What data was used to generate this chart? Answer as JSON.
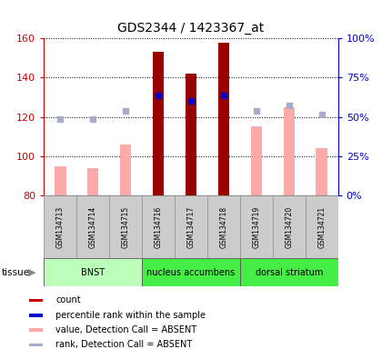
{
  "title": "GDS2344 / 1423367_at",
  "samples": [
    "GSM134713",
    "GSM134714",
    "GSM134715",
    "GSM134716",
    "GSM134717",
    "GSM134718",
    "GSM134719",
    "GSM134720",
    "GSM134721"
  ],
  "ylim_left": [
    80,
    160
  ],
  "ylim_right": [
    0,
    100
  ],
  "yticks_left": [
    80,
    100,
    120,
    140,
    160
  ],
  "yticks_right": [
    0,
    25,
    50,
    75,
    100
  ],
  "ytick_labels_right": [
    "0%",
    "25%",
    "50%",
    "75%",
    "100%"
  ],
  "bar_values": [
    null,
    null,
    null,
    153,
    142,
    158,
    null,
    null,
    null
  ],
  "bar_pink_values": [
    95,
    94,
    106,
    null,
    null,
    null,
    115,
    125,
    104
  ],
  "rank_blue_values": [
    null,
    null,
    null,
    131,
    128,
    131,
    null,
    null,
    null
  ],
  "rank_blue_absent_values": [
    119,
    119,
    123,
    null,
    null,
    null,
    123,
    126,
    121
  ],
  "bar_color": "#990000",
  "bar_pink_color": "#ffaaaa",
  "rank_blue_color": "#0000cc",
  "rank_blue_absent_color": "#aaaacc",
  "tissue_groups": [
    {
      "label": "BNST",
      "start": 0,
      "end": 3,
      "color": "#bbffbb"
    },
    {
      "label": "nucleus accumbens",
      "start": 3,
      "end": 6,
      "color": "#44ee44"
    },
    {
      "label": "dorsal striatum",
      "start": 6,
      "end": 9,
      "color": "#44ee44"
    }
  ],
  "legend_items": [
    {
      "color": "#cc0000",
      "label": "count"
    },
    {
      "color": "#0000cc",
      "label": "percentile rank within the sample"
    },
    {
      "color": "#ffaaaa",
      "label": "value, Detection Call = ABSENT"
    },
    {
      "color": "#aaaacc",
      "label": "rank, Detection Call = ABSENT"
    }
  ],
  "background_color": "#ffffff",
  "axis_color_left": "#cc0000",
  "axis_color_right": "#0000cc",
  "bar_width": 0.35,
  "rank_marker_size": 5,
  "sample_box_color": "#cccccc",
  "sample_box_edge": "#999999"
}
